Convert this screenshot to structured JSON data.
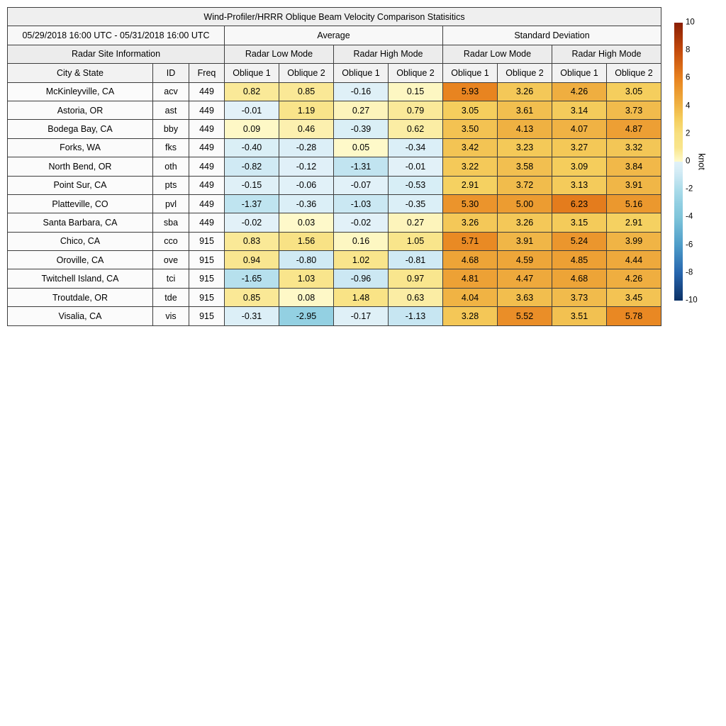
{
  "chart_data": {
    "type": "heatmap-table",
    "title": "Wind-Profiler/HRRR Oblique Beam Velocity Comparison Statisitics",
    "date_range": "05/29/2018 16:00 UTC - 05/31/2018 16:00 UTC",
    "group_headers": {
      "site_info": "Radar Site Information",
      "average": "Average",
      "std_dev": "Standard Deviation",
      "low_mode": "Radar Low Mode",
      "high_mode": "Radar High Mode"
    },
    "col_headers": {
      "city": "City & State",
      "id": "ID",
      "freq": "Freq",
      "oblique1": "Oblique 1",
      "oblique2": "Oblique 2"
    },
    "value_columns": [
      "avg_low_ob1",
      "avg_low_ob2",
      "avg_high_ob1",
      "avg_high_ob2",
      "std_low_ob1",
      "std_low_ob2",
      "std_high_ob1",
      "std_high_ob2"
    ],
    "rows": [
      {
        "city": "McKinleyville, CA",
        "id": "acv",
        "freq": "449",
        "values": [
          0.82,
          0.85,
          -0.16,
          0.15,
          5.93,
          3.26,
          4.26,
          3.05
        ]
      },
      {
        "city": "Astoria, OR",
        "id": "ast",
        "freq": "449",
        "values": [
          -0.01,
          1.19,
          0.27,
          0.79,
          3.05,
          3.61,
          3.14,
          3.73
        ]
      },
      {
        "city": "Bodega Bay, CA",
        "id": "bby",
        "freq": "449",
        "values": [
          0.09,
          0.46,
          -0.39,
          0.62,
          3.5,
          4.13,
          4.07,
          4.87
        ]
      },
      {
        "city": "Forks, WA",
        "id": "fks",
        "freq": "449",
        "values": [
          -0.4,
          -0.28,
          0.05,
          -0.34,
          3.42,
          3.23,
          3.27,
          3.32
        ]
      },
      {
        "city": "North Bend, OR",
        "id": "oth",
        "freq": "449",
        "values": [
          -0.82,
          -0.12,
          -1.31,
          -0.01,
          3.22,
          3.58,
          3.09,
          3.84
        ]
      },
      {
        "city": "Point Sur, CA",
        "id": "pts",
        "freq": "449",
        "values": [
          -0.15,
          -0.06,
          -0.07,
          -0.53,
          2.91,
          3.72,
          3.13,
          3.91
        ]
      },
      {
        "city": "Platteville, CO",
        "id": "pvl",
        "freq": "449",
        "values": [
          -1.37,
          -0.36,
          -1.03,
          -0.35,
          5.3,
          5.0,
          6.23,
          5.16
        ]
      },
      {
        "city": "Santa Barbara, CA",
        "id": "sba",
        "freq": "449",
        "values": [
          -0.02,
          0.03,
          -0.02,
          0.27,
          3.26,
          3.26,
          3.15,
          2.91
        ]
      },
      {
        "city": "Chico, CA",
        "id": "cco",
        "freq": "915",
        "values": [
          0.83,
          1.56,
          0.16,
          1.05,
          5.71,
          3.91,
          5.24,
          3.99
        ]
      },
      {
        "city": "Oroville, CA",
        "id": "ove",
        "freq": "915",
        "values": [
          0.94,
          -0.8,
          1.02,
          -0.81,
          4.68,
          4.59,
          4.85,
          4.44
        ]
      },
      {
        "city": "Twitchell Island, CA",
        "id": "tci",
        "freq": "915",
        "values": [
          -1.65,
          1.03,
          -0.96,
          0.97,
          4.81,
          4.47,
          4.68,
          4.26
        ]
      },
      {
        "city": "Troutdale, OR",
        "id": "tde",
        "freq": "915",
        "values": [
          0.85,
          0.08,
          1.48,
          0.63,
          4.04,
          3.63,
          3.73,
          3.45
        ]
      },
      {
        "city": "Visalia, CA",
        "id": "vis",
        "freq": "915",
        "values": [
          -0.31,
          -2.95,
          -0.17,
          -1.13,
          3.28,
          5.52,
          3.51,
          5.78
        ]
      }
    ],
    "colorbar": {
      "unit": "knot",
      "vmin": -10,
      "vmax": 10,
      "ticks": [
        10,
        8,
        6,
        4,
        2,
        0,
        -2,
        -4,
        -6,
        -8,
        -10
      ],
      "colormap": {
        "positive": [
          [
            0,
            "#FEFACC"
          ],
          [
            1,
            "#F9E58C"
          ],
          [
            2,
            "#F8E080"
          ],
          [
            3,
            "#F5CF5E"
          ],
          [
            4,
            "#F0B445"
          ],
          [
            5,
            "#EC9C31"
          ],
          [
            6,
            "#E8821F"
          ],
          [
            8,
            "#C44A0C"
          ],
          [
            10,
            "#8A1E04"
          ]
        ],
        "negative": [
          [
            0,
            "#E2F1F8"
          ],
          [
            0.5,
            "#D8EEF6"
          ],
          [
            1,
            "#CBE8F3"
          ],
          [
            2,
            "#ABDCEA"
          ],
          [
            3,
            "#92CFE2"
          ],
          [
            4,
            "#7FC5DA"
          ],
          [
            6,
            "#4E9DC9"
          ],
          [
            8,
            "#2766AE"
          ],
          [
            10,
            "#0C3166"
          ]
        ]
      }
    }
  }
}
